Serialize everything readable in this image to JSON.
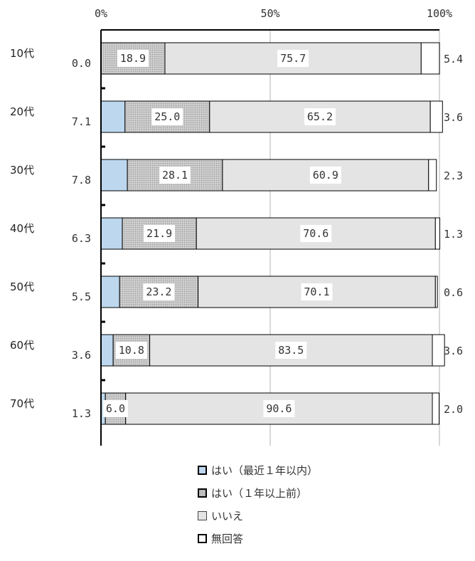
{
  "chart_data": {
    "type": "bar",
    "orientation": "horizontal",
    "stacked": true,
    "percent": true,
    "xlim": [
      0,
      100
    ],
    "ticks": [
      "0%",
      "50%",
      "100%"
    ],
    "grid": true,
    "legend_position": "bottom",
    "categories": [
      "10代",
      "20代",
      "30代",
      "40代",
      "50代",
      "60代",
      "70代"
    ],
    "series": [
      {
        "name": "はい（最近１年以内）",
        "color": "#bcd7ee",
        "values": [
          0.0,
          7.1,
          7.8,
          6.3,
          5.5,
          3.6,
          1.3
        ]
      },
      {
        "name": "はい（１年以上前）",
        "color": "#cfcfcf",
        "values": [
          18.9,
          25.0,
          28.1,
          21.9,
          23.2,
          10.8,
          6.0
        ]
      },
      {
        "name": "いいえ",
        "color": "#e4e4e4",
        "values": [
          75.7,
          65.2,
          60.9,
          70.6,
          70.1,
          83.5,
          90.6
        ]
      },
      {
        "name": "無回答",
        "color": "#ffffff",
        "values": [
          5.4,
          3.6,
          2.3,
          1.3,
          0.6,
          3.6,
          2.0
        ]
      }
    ],
    "labels": {
      "left": [
        "0.0",
        "7.1",
        "7.8",
        "6.3",
        "5.5",
        "3.6",
        "1.3"
      ],
      "s1": [
        "18.9",
        "25.0",
        "28.1",
        "21.9",
        "23.2",
        "10.8",
        "6.0"
      ],
      "s2": [
        "75.7",
        "65.2",
        "60.9",
        "70.6",
        "70.1",
        "83.5",
        "90.6"
      ],
      "right": [
        "5.4",
        "3.6",
        "2.3",
        "1.3",
        "0.6",
        "3.6",
        "2.0"
      ]
    }
  }
}
